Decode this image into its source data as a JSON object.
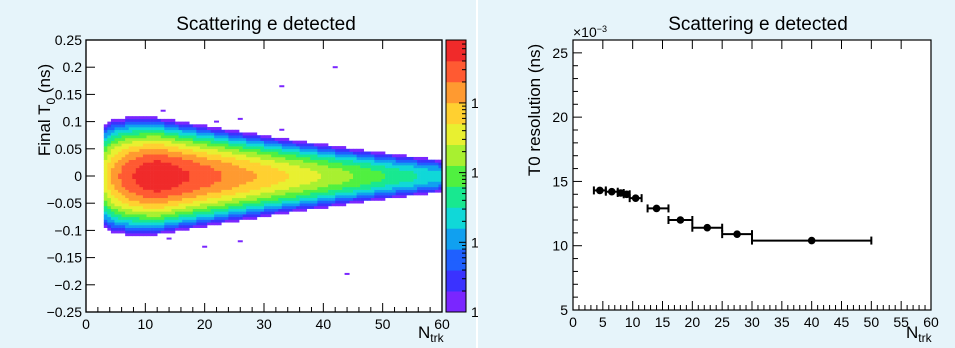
{
  "colors": {
    "background": "#e6f4fa",
    "palette": [
      "#7a26ff",
      "#3a32ff",
      "#1f60ff",
      "#10a0f0",
      "#10d8d8",
      "#18e890",
      "#50f040",
      "#a8f030",
      "#e8f030",
      "#ffd030",
      "#ff9a30",
      "#ff5a32",
      "#f02a2a"
    ]
  },
  "chart_data": [
    {
      "type": "heatmap",
      "title": "Scattering e detected",
      "xlabel": "N",
      "xlabel_sub": "trk",
      "ylabel": "Final T",
      "ylabel_sub": "0",
      "ylabel_unit": " (ns)",
      "xlim": [
        0,
        60
      ],
      "ylim": [
        -0.25,
        0.25
      ],
      "x_ticks": [
        "0",
        "10",
        "20",
        "30",
        "40",
        "50",
        "60"
      ],
      "y_ticks": [
        "−0.25",
        "−0.2",
        "−0.15",
        "−0.1",
        "−0.05",
        "0",
        "0.05",
        "0.1",
        "0.15",
        "0.2",
        "0.25"
      ],
      "colorbar": {
        "scale": "log",
        "min": 1,
        "max": 8000,
        "ticks": [
          "1",
          "10",
          "10",
          "10"
        ],
        "tick_exponents": [
          "",
          "",
          "2",
          "3"
        ]
      },
      "distribution": {
        "x_start": 3,
        "x_end": 60,
        "peak_x": 12,
        "peak_counts": 8000,
        "sigma_t_at": [
          [
            3,
            0.028
          ],
          [
            60,
            0.012
          ]
        ]
      },
      "outliers": [
        [
          13,
          0.12
        ],
        [
          22,
          0.1
        ],
        [
          26,
          0.105
        ],
        [
          33,
          0.165
        ],
        [
          42,
          0.2
        ],
        [
          33,
          0.085
        ],
        [
          20,
          -0.13
        ],
        [
          26,
          -0.12
        ],
        [
          44,
          -0.18
        ],
        [
          14,
          -0.115
        ]
      ]
    },
    {
      "type": "scatter",
      "title": "Scattering e detected",
      "xlabel": "N",
      "xlabel_sub": "trk",
      "ylabel": "T0 resolution (ns)",
      "y_multiplier": "×10",
      "y_multiplier_exp": "−3",
      "xlim": [
        0,
        60
      ],
      "ylim": [
        5,
        26
      ],
      "x_ticks": [
        "0",
        "5",
        "10",
        "15",
        "20",
        "25",
        "30",
        "35",
        "40",
        "45",
        "50",
        "55",
        "60"
      ],
      "y_ticks": [
        "5",
        "10",
        "15",
        "20",
        "25"
      ],
      "points": [
        {
          "x": 4.5,
          "y": 14.3,
          "xerr": [
            3.5,
            5.5
          ]
        },
        {
          "x": 6.5,
          "y": 14.2,
          "xerr": [
            5.5,
            7.5
          ]
        },
        {
          "x": 8.0,
          "y": 14.1,
          "xerr": [
            7.5,
            8.5
          ]
        },
        {
          "x": 9.0,
          "y": 14.0,
          "xerr": [
            8.5,
            9.5
          ]
        },
        {
          "x": 10.5,
          "y": 13.7,
          "xerr": [
            9.5,
            11.5
          ]
        },
        {
          "x": 14.0,
          "y": 12.9,
          "xerr": [
            12.5,
            16.0
          ]
        },
        {
          "x": 18.0,
          "y": 12.0,
          "xerr": [
            16.0,
            20.0
          ]
        },
        {
          "x": 22.5,
          "y": 11.4,
          "xerr": [
            20.0,
            25.0
          ]
        },
        {
          "x": 27.5,
          "y": 10.9,
          "xerr": [
            25.0,
            30.0
          ]
        },
        {
          "x": 40.0,
          "y": 10.4,
          "xerr": [
            30.0,
            50.0
          ]
        }
      ]
    }
  ]
}
